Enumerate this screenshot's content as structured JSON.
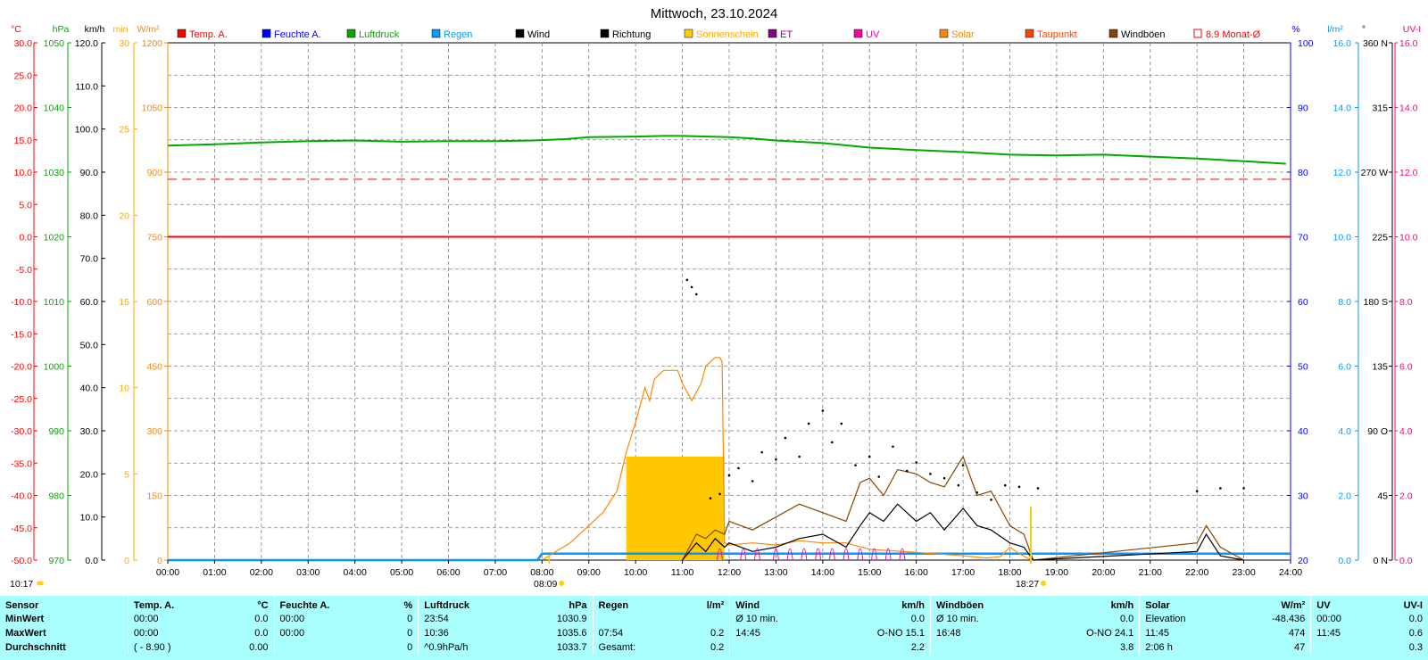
{
  "title": "Mittwoch, 23.10.2024",
  "legend": [
    {
      "label": "Temp. A.",
      "color": "#ff0000",
      "type": "fill"
    },
    {
      "label": "Feuchte A.",
      "color": "#0000ff",
      "type": "fill"
    },
    {
      "label": "Luftdruck",
      "color": "#00aa00",
      "type": "fill"
    },
    {
      "label": "Regen",
      "color": "#0099ff",
      "type": "fill"
    },
    {
      "label": "Wind",
      "color": "#000000",
      "type": "fill"
    },
    {
      "label": "Richtung",
      "color": "#000000",
      "type": "fill"
    },
    {
      "label": "Sonnenschein",
      "color": "#ffcc00",
      "type": "fill"
    },
    {
      "label": "ET",
      "color": "#880088",
      "type": "fill"
    },
    {
      "label": "UV",
      "color": "#ff00aa",
      "type": "fill"
    },
    {
      "label": "Solar",
      "color": "#ff8800",
      "type": "fill"
    },
    {
      "label": "Taupunkt",
      "color": "#ff4400",
      "type": "fill"
    },
    {
      "label": "Windböen",
      "color": "#884400",
      "type": "fill"
    },
    {
      "label": "8.9 Monat-Ø",
      "color": "#ff0000",
      "type": "outline"
    }
  ],
  "axes": {
    "temp": {
      "unit": "°C",
      "color": "#ff0000",
      "labels": [
        "30.0",
        "25.0",
        "20.0",
        "15.0",
        "10.0",
        "5.0",
        "0.0",
        "-5.0",
        "-10.0",
        "-15.0",
        "-20.0",
        "-25.0",
        "-30.0",
        "-35.0",
        "-40.0",
        "-45.0",
        "-50.0"
      ]
    },
    "hpa": {
      "unit": "hPa",
      "color": "#00aa00",
      "labels": [
        "1050",
        "1040",
        "1030",
        "1020",
        "1010",
        "1000",
        "990",
        "980",
        "970"
      ]
    },
    "kmh": {
      "unit": "km/h",
      "color": "#000000",
      "labels": [
        "120.0",
        "110.0",
        "100.0",
        "90.0",
        "80.0",
        "70.0",
        "60.0",
        "50.0",
        "40.0",
        "30.0",
        "20.0",
        "10.0",
        "0.0"
      ]
    },
    "min": {
      "unit": "min",
      "color": "#ffaa00",
      "labels": [
        "30",
        "25",
        "20",
        "15",
        "10",
        "5",
        "0"
      ]
    },
    "wm2": {
      "unit": "W/m²",
      "color": "#ff8800",
      "labels": [
        "1200",
        "1050",
        "900",
        "750",
        "600",
        "450",
        "300",
        "150",
        "0"
      ]
    },
    "pct": {
      "unit": "%",
      "color": "#0000ff",
      "labels": [
        "100",
        "90",
        "80",
        "70",
        "60",
        "50",
        "40",
        "30",
        "20"
      ]
    },
    "lm2": {
      "unit": "l/m²",
      "color": "#0099ff",
      "labels": [
        "16.0",
        "14.0",
        "12.0",
        "10.0",
        "8.0",
        "6.0",
        "4.0",
        "2.0",
        "0.0"
      ]
    },
    "deg": {
      "unit": "°",
      "color": "#000000",
      "labels": [
        "360 N",
        "315",
        "270 W",
        "225",
        "180 S",
        "135",
        "90 O",
        "45",
        "0 N"
      ]
    },
    "uvi": {
      "unit": "UV-I",
      "color": "#ff0088",
      "labels": [
        "16.0",
        "14.0",
        "12.0",
        "10.0",
        "8.0",
        "6.0",
        "4.0",
        "2.0",
        "0.0"
      ]
    }
  },
  "x_ticks": [
    "00:00",
    "01:00",
    "02:00",
    "03:00",
    "04:00",
    "05:00",
    "06:00",
    "07:00",
    "08:00",
    "09:00",
    "10:00",
    "11:00",
    "12:00",
    "13:00",
    "14:00",
    "15:00",
    "16:00",
    "17:00",
    "18:00",
    "19:00",
    "20:00",
    "21:00",
    "22:00",
    "23:00",
    "24:00"
  ],
  "markers": {
    "sunrise": "08:09",
    "sunset": "18:27",
    "moon": "10:17"
  },
  "chart_data": {
    "type": "line",
    "x_unit": "hours",
    "xlim": [
      0,
      24
    ],
    "temperature_c": {
      "value": 0.0
    },
    "month_avg_temperature_c": {
      "value": 8.9
    },
    "pressure_hpa": {
      "x": [
        0,
        1,
        2,
        3,
        4,
        5,
        6,
        7,
        7.8,
        8.5,
        9,
        10,
        10.6,
        11,
        12,
        12.5,
        13,
        14,
        15,
        16,
        17,
        18,
        19,
        20,
        21,
        22,
        23,
        23.9
      ],
      "y": [
        1034.1,
        1034.3,
        1034.6,
        1034.8,
        1034.9,
        1034.7,
        1034.8,
        1034.8,
        1034.9,
        1035.1,
        1035.4,
        1035.5,
        1035.6,
        1035.6,
        1035.4,
        1035.2,
        1034.9,
        1034.5,
        1033.8,
        1033.4,
        1033.1,
        1032.7,
        1032.6,
        1032.7,
        1032.4,
        1032.1,
        1031.7,
        1031.3
      ]
    },
    "rain_lm2": {
      "x": [
        0,
        7.9,
        8.0,
        24
      ],
      "y": [
        0,
        0,
        0.2,
        0.2
      ]
    },
    "solar_wm2": {
      "x": [
        8.0,
        8.3,
        8.6,
        9,
        9.3,
        9.6,
        9.8,
        10,
        10.2,
        10.3,
        10.4,
        10.6,
        10.9,
        11.0,
        11.2,
        11.4,
        11.5,
        11.7,
        11.8,
        11.85,
        11.9,
        12.0,
        12.5,
        13,
        13.5,
        14,
        14.5,
        15,
        16,
        17,
        17.5,
        17.8,
        18,
        18.2,
        18.4,
        18.5
      ],
      "y": [
        0,
        20,
        40,
        80,
        110,
        160,
        250,
        320,
        400,
        370,
        420,
        440,
        440,
        410,
        370,
        410,
        450,
        470,
        470,
        460,
        40,
        35,
        40,
        35,
        45,
        40,
        40,
        25,
        18,
        10,
        5,
        8,
        30,
        15,
        3,
        0
      ]
    },
    "sunshine_min": [
      {
        "from": 9.8,
        "to": 11.9,
        "minutes": 6
      }
    ],
    "wind_kmh": {
      "x": [
        11.0,
        11.3,
        11.5,
        11.7,
        11.9,
        12.0,
        12.5,
        13.0,
        13.5,
        14.0,
        14.5,
        14.8,
        15.0,
        15.3,
        15.6,
        16.0,
        16.3,
        16.6,
        17.0,
        17.3,
        17.6,
        18.0,
        18.3,
        18.5,
        22.0,
        22.2,
        22.5,
        23.0
      ],
      "y": [
        0,
        4,
        2,
        5,
        3,
        4,
        2,
        3,
        5,
        6,
        3,
        8,
        11,
        9,
        13,
        9,
        11,
        7,
        12,
        8,
        7,
        4,
        3,
        0,
        2,
        6,
        1,
        0
      ]
    },
    "gust_kmh": {
      "x": [
        11.0,
        11.3,
        11.5,
        11.7,
        11.9,
        12.0,
        12.5,
        13.0,
        13.5,
        14.0,
        14.5,
        14.8,
        15.0,
        15.3,
        15.6,
        16.0,
        16.3,
        16.6,
        17.0,
        17.3,
        17.6,
        18.0,
        18.3,
        18.5,
        22.0,
        22.2,
        22.5,
        23.0
      ],
      "y": [
        0,
        6,
        5,
        7,
        6,
        9,
        7,
        10,
        13,
        11,
        9,
        18,
        19,
        15,
        21,
        20,
        18,
        17,
        24,
        15,
        16,
        8,
        6,
        0,
        4,
        8,
        3,
        0
      ]
    },
    "direction_deg": {
      "x": [
        11.1,
        11.2,
        11.3,
        11.6,
        11.8,
        12.0,
        12.2,
        12.5,
        12.7,
        13.0,
        13.2,
        13.5,
        13.7,
        14.0,
        14.2,
        14.4,
        14.7,
        15.0,
        15.2,
        15.5,
        15.8,
        16.0,
        16.3,
        16.6,
        16.9,
        17.0,
        17.3,
        17.6,
        17.9,
        18.2,
        18.6,
        22.0,
        22.5,
        23.0
      ],
      "y": [
        195,
        190,
        185,
        43,
        46,
        59,
        64,
        55,
        75,
        70,
        85,
        72,
        95,
        104,
        82,
        95,
        66,
        72,
        58,
        79,
        62,
        68,
        60,
        57,
        52,
        66,
        47,
        42,
        52,
        51,
        50,
        48,
        50,
        50
      ]
    },
    "uv_index": {
      "max": 0.6,
      "peaks_x": [
        11.8,
        12.3,
        12.6,
        13.0,
        13.3,
        13.6,
        13.9,
        14.2,
        14.5,
        14.8,
        15.1,
        15.4,
        15.7
      ]
    }
  },
  "table": {
    "headers": [
      {
        "name": "Sensor",
        "unit": ""
      },
      {
        "name": "Temp. A.",
        "unit": "°C"
      },
      {
        "name": "Feuchte A.",
        "unit": "%"
      },
      {
        "name": "Luftdruck",
        "unit": "hPa"
      },
      {
        "name": "Regen",
        "unit": "l/m²"
      },
      {
        "name": "Wind",
        "unit": "km/h"
      },
      {
        "name": "Windböen",
        "unit": "km/h"
      },
      {
        "name": "Solar",
        "unit": "W/m²"
      },
      {
        "name": "UV",
        "unit": "UV-I"
      }
    ],
    "rows": [
      {
        "label": "MinWert",
        "cells": [
          [
            "00:00",
            "0.0"
          ],
          [
            "00:00",
            "0"
          ],
          [
            "23:54",
            "1030.9"
          ],
          [
            "",
            ""
          ],
          [
            "Ø 10 min.",
            "0.0"
          ],
          [
            "Ø 10 min.",
            "0.0"
          ],
          [
            "Elevation",
            "-48.436"
          ],
          [
            "00:00",
            "0.0"
          ]
        ]
      },
      {
        "label": "MaxWert",
        "cells": [
          [
            "00:00",
            "0.0"
          ],
          [
            "00:00",
            "0"
          ],
          [
            "10:36",
            "1035.6"
          ],
          [
            "07:54",
            "0.2"
          ],
          [
            "14:45",
            "O-NO 15.1"
          ],
          [
            "16:48",
            "O-NO 24.1"
          ],
          [
            "11:45",
            "474"
          ],
          [
            "11:45",
            "0.6"
          ]
        ]
      },
      {
        "label": "Durchschnitt",
        "cells": [
          [
            "( - 8.90 )",
            "0.00"
          ],
          [
            "",
            "0"
          ],
          [
            "^0.9hPa/h",
            "1033.7"
          ],
          [
            "Gesamt:",
            "0.2"
          ],
          [
            "",
            "2.2"
          ],
          [
            "",
            "3.8"
          ],
          [
            "2:06 h",
            "47"
          ],
          [
            "",
            "0.3"
          ]
        ]
      }
    ]
  }
}
